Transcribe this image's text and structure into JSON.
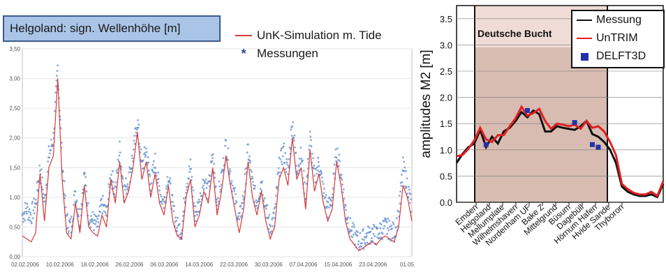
{
  "chart_data": [
    {
      "type": "line",
      "title": "Helgoland: sign. Wellenhöhe [m]",
      "xlabel": "",
      "ylabel": "",
      "ylim": [
        0,
        3.5
      ],
      "yticks": [
        "0,00",
        "0,50",
        "1,00",
        "1,50",
        "2,00",
        "2,50",
        "3,00",
        "3,50"
      ],
      "xticks": [
        "02.02.2006",
        "10.02.2006",
        "18.02.2006",
        "26.02.2006",
        "06.03.2006",
        "14.03.2006",
        "22.03.2006",
        "30.03.2006",
        "07.04.2006",
        "15.04.2006",
        "23.04.2006",
        "01.05."
      ],
      "x_days": [
        0,
        1,
        2,
        3,
        4,
        5,
        6,
        7,
        8,
        9,
        10,
        11,
        12,
        13,
        14,
        15,
        16,
        17,
        18,
        19,
        20,
        21,
        22,
        23,
        24,
        25,
        26,
        27,
        28,
        29,
        30,
        31,
        32,
        33,
        34,
        35,
        36,
        37,
        38,
        39,
        40,
        41,
        42,
        43,
        44,
        45,
        46,
        47,
        48,
        49,
        50,
        51,
        52,
        53,
        54,
        55,
        56,
        57,
        58,
        59,
        60,
        61,
        62,
        63,
        64,
        65,
        66,
        67,
        68,
        69,
        70,
        71,
        72,
        73,
        74,
        75,
        76,
        77,
        78,
        79,
        80,
        81,
        82,
        83,
        84,
        85,
        86,
        87,
        88
      ],
      "series": [
        {
          "name": "UnK-Simulation m. Tide",
          "color": "#d43a3a",
          "values": [
            0.35,
            0.3,
            0.25,
            0.4,
            1.4,
            0.6,
            1.5,
            1.7,
            3.0,
            1.3,
            0.4,
            0.3,
            0.9,
            0.4,
            1.2,
            0.5,
            0.4,
            0.35,
            0.7,
            0.5,
            1.3,
            0.9,
            1.6,
            0.9,
            1.1,
            1.5,
            2.1,
            1.3,
            1.6,
            1.0,
            1.4,
            0.9,
            0.7,
            1.2,
            0.6,
            0.35,
            0.3,
            1.0,
            1.3,
            0.5,
            0.7,
            1.1,
            0.9,
            1.5,
            0.7,
            1.1,
            1.7,
            1.2,
            0.8,
            0.4,
            0.8,
            1.6,
            1.0,
            0.7,
            1.1,
            0.6,
            0.3,
            0.5,
            1.3,
            1.5,
            1.2,
            2.0,
            1.3,
            1.5,
            0.8,
            1.8,
            1.1,
            1.4,
            0.9,
            0.6,
            0.8,
            1.6,
            1.2,
            0.6,
            0.3,
            0.2,
            0.1,
            0.15,
            0.2,
            0.25,
            0.2,
            0.3,
            0.35,
            0.3,
            0.25,
            0.5,
            1.2,
            1.0,
            0.6
          ]
        },
        {
          "name": "Messungen",
          "color": "#5b8ccf",
          "marker": "*",
          "values": [
            0.7,
            0.8,
            0.7,
            0.9,
            1.5,
            0.9,
            1.7,
            2.0,
            3.2,
            1.6,
            0.6,
            0.5,
            1.1,
            0.6,
            1.4,
            0.7,
            0.6,
            0.5,
            0.9,
            0.7,
            1.4,
            1.1,
            1.8,
            1.1,
            1.3,
            1.7,
            2.3,
            1.5,
            1.8,
            1.2,
            1.6,
            1.1,
            0.9,
            1.4,
            0.8,
            0.5,
            0.45,
            1.2,
            1.5,
            0.7,
            0.9,
            1.3,
            1.1,
            1.7,
            0.9,
            1.3,
            1.9,
            1.4,
            1.0,
            0.6,
            1.0,
            1.8,
            1.2,
            0.9,
            1.3,
            0.8,
            0.5,
            0.7,
            1.5,
            1.8,
            1.4,
            2.3,
            1.5,
            1.7,
            1.0,
            2.0,
            1.3,
            1.6,
            1.1,
            0.8,
            1.0,
            1.8,
            1.4,
            0.8,
            0.5,
            0.35,
            0.25,
            0.3,
            0.35,
            0.4,
            0.35,
            0.45,
            0.5,
            0.45,
            0.4,
            0.7,
            1.5,
            1.2,
            0.8
          ]
        }
      ]
    },
    {
      "type": "line",
      "title": "",
      "region_label": "Deutsche Bucht",
      "ylabel": "amplitudes M2 [m]",
      "ylim": [
        0,
        3.75
      ],
      "yticks": [
        "0.0",
        "0.5",
        "1.0",
        "1.5",
        "2.0",
        "2.5",
        "3.0",
        "3.5"
      ],
      "categories": [
        "Emden",
        "Helgoland",
        "Mellumplate",
        "Wilhelmshaven",
        "Nordenham UF",
        "Bake Z",
        "Mittelgrund",
        "Büsum",
        "Dagebüll",
        "Hörnum Hafen",
        "Hvide Sande",
        "Thyboron"
      ],
      "x": [
        0,
        1,
        2,
        3,
        4,
        5,
        6,
        7,
        8,
        9,
        10,
        11,
        12,
        13,
        14,
        15,
        16,
        17,
        18,
        19,
        20,
        21,
        22,
        23,
        24,
        25,
        26,
        27,
        28,
        29,
        30,
        31,
        32,
        33,
        34,
        35
      ],
      "series": [
        {
          "name": "Messung",
          "color": "#111111",
          "values": [
            0.75,
            0.92,
            1.05,
            1.12,
            1.38,
            1.05,
            1.25,
            1.12,
            1.35,
            1.42,
            1.55,
            1.72,
            1.62,
            1.75,
            1.68,
            1.35,
            1.35,
            1.45,
            1.42,
            1.4,
            1.38,
            1.45,
            1.55,
            1.3,
            1.25,
            1.15,
            1.0,
            0.75,
            0.3,
            0.2,
            0.15,
            0.12,
            0.12,
            0.15,
            0.1,
            0.35
          ]
        },
        {
          "name": "UnTRIM",
          "color": "#e02020",
          "values": [
            0.88,
            0.9,
            1.02,
            1.18,
            1.42,
            1.2,
            1.15,
            1.28,
            1.28,
            1.45,
            1.6,
            1.82,
            1.65,
            1.7,
            1.78,
            1.55,
            1.4,
            1.5,
            1.48,
            1.45,
            1.48,
            1.4,
            1.55,
            1.42,
            1.45,
            1.35,
            1.15,
            0.9,
            0.35,
            0.25,
            0.18,
            0.15,
            0.15,
            0.2,
            0.12,
            0.4
          ]
        },
        {
          "name": "DELFT3D",
          "color": "#2233aa",
          "marker": "square",
          "x": [
            5,
            12,
            20,
            23,
            24
          ],
          "values": [
            1.1,
            1.75,
            1.52,
            1.1,
            1.05
          ]
        }
      ]
    }
  ]
}
